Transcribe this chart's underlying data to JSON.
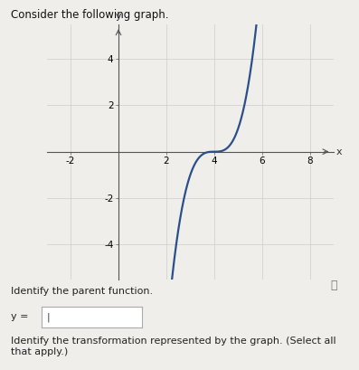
{
  "title": "Consider the following graph.",
  "curve_color": "#2a4f8a",
  "curve_linewidth": 1.6,
  "x_shift": 4,
  "xlim": [
    -3,
    9
  ],
  "ylim": [
    -5.5,
    5.5
  ],
  "xticks": [
    -2,
    2,
    4,
    6,
    8
  ],
  "yticks": [
    -4,
    -2,
    2,
    4
  ],
  "xlabel": "x",
  "ylabel": "y",
  "bg_color": "#f0eeea",
  "plot_bg_color": "#f0eeea",
  "grid_color": "#cccccc",
  "label_text_1": "Identify the parent function.",
  "label_text_2": "y = ",
  "label_text_3": "Identify the transformation represented by the graph. (Select all that apply.)",
  "font_size_title": 8.5,
  "font_size_labels": 8,
  "font_size_axis_tick": 7.5,
  "info_icon": "ⓘ"
}
